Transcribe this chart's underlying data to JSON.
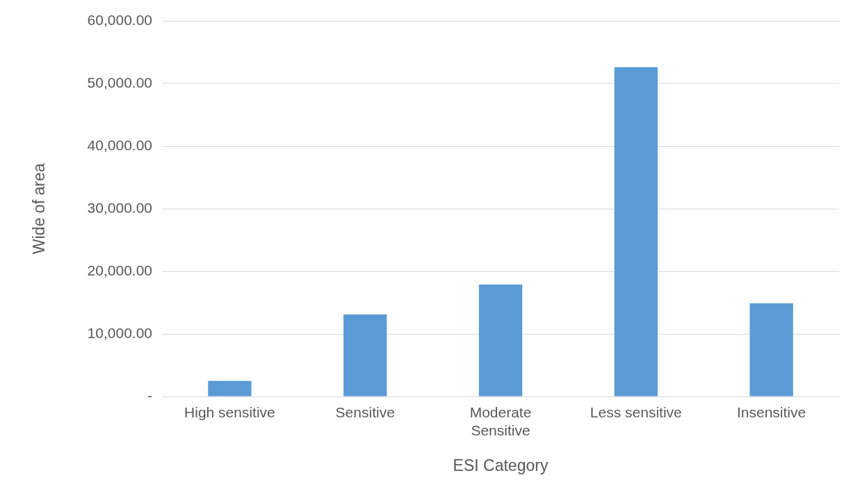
{
  "chart_data": {
    "type": "bar",
    "xlabel": "ESI Category",
    "ylabel": "Wide of area",
    "categories": [
      "High sensitive",
      "Sensitive",
      "Moderate Sensitive",
      "Less sensitive",
      "Insensitive"
    ],
    "values": [
      2500,
      13100,
      17900,
      52600,
      14900
    ],
    "color": "#5b9bd5",
    "ylim": [
      0,
      60000
    ],
    "yticks": [
      {
        "value": 0,
        "label": "-"
      },
      {
        "value": 10000,
        "label": "10,000.00"
      },
      {
        "value": 20000,
        "label": "20,000.00"
      },
      {
        "value": 30000,
        "label": "30,000.00"
      },
      {
        "value": 40000,
        "label": "40,000.00"
      },
      {
        "value": 50000,
        "label": "50,000.00"
      },
      {
        "value": 60000,
        "label": "60,000.00"
      }
    ],
    "grid": "y",
    "legend": false
  }
}
